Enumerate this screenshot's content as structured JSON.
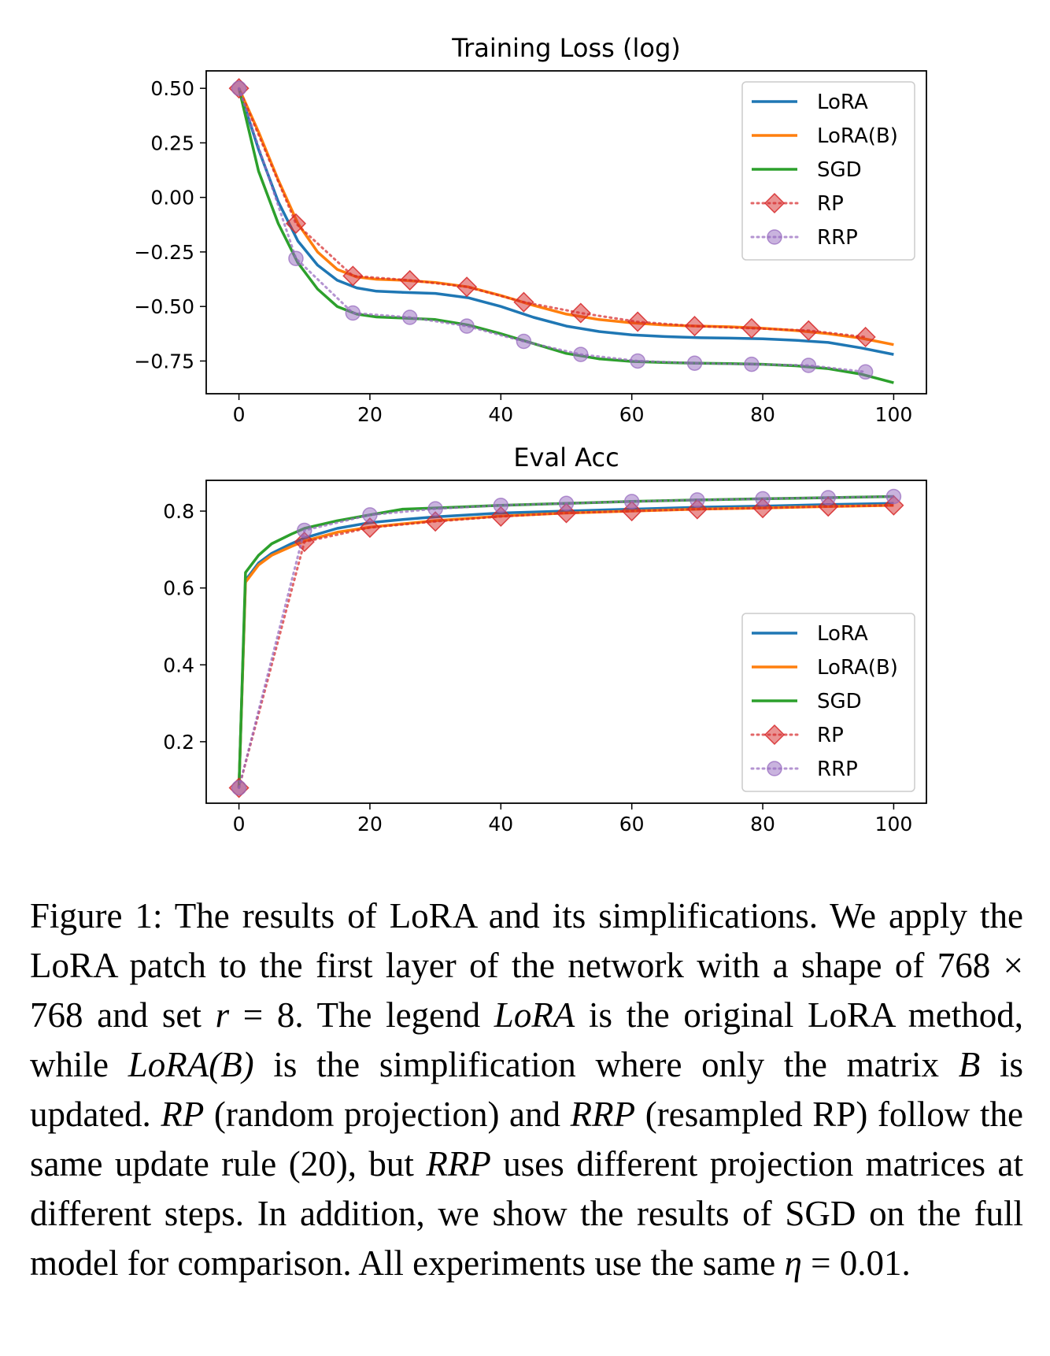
{
  "chart_data": [
    {
      "type": "line",
      "title": "Training Loss (log)",
      "xlabel": "",
      "ylabel": "",
      "xlim": [
        -5,
        105
      ],
      "ylim": [
        -0.9,
        0.58
      ],
      "x_ticks": [
        0,
        20,
        40,
        60,
        80,
        100
      ],
      "x_tick_labels": [
        "0",
        "20",
        "40",
        "60",
        "80",
        "100"
      ],
      "y_ticks": [
        0.5,
        0.25,
        0.0,
        -0.25,
        -0.5,
        -0.75
      ],
      "y_tick_labels": [
        "0.50",
        "0.25",
        "0.00",
        "−0.25",
        "−0.50",
        "−0.75"
      ],
      "legend_position": "upper right",
      "series": [
        {
          "name": "LoRA",
          "color": "#1f77b4",
          "style": "solid",
          "x": [
            0,
            3,
            6,
            9,
            12,
            15,
            18,
            21,
            25,
            30,
            35,
            40,
            45,
            50,
            55,
            60,
            65,
            70,
            75,
            80,
            85,
            90,
            95,
            100
          ],
          "y": [
            0.5,
            0.22,
            -0.02,
            -0.2,
            -0.31,
            -0.38,
            -0.415,
            -0.43,
            -0.435,
            -0.44,
            -0.46,
            -0.5,
            -0.55,
            -0.59,
            -0.615,
            -0.63,
            -0.638,
            -0.643,
            -0.645,
            -0.648,
            -0.655,
            -0.665,
            -0.69,
            -0.72
          ]
        },
        {
          "name": "LoRA(B)",
          "color": "#ff7f0e",
          "style": "solid",
          "x": [
            0,
            3,
            6,
            9,
            12,
            15,
            18,
            21,
            25,
            30,
            35,
            40,
            45,
            50,
            55,
            60,
            65,
            70,
            75,
            80,
            85,
            90,
            95,
            100
          ],
          "y": [
            0.5,
            0.3,
            0.08,
            -0.12,
            -0.25,
            -0.33,
            -0.365,
            -0.375,
            -0.38,
            -0.39,
            -0.41,
            -0.45,
            -0.495,
            -0.535,
            -0.56,
            -0.575,
            -0.585,
            -0.59,
            -0.593,
            -0.6,
            -0.61,
            -0.625,
            -0.645,
            -0.675
          ]
        },
        {
          "name": "SGD",
          "color": "#2ca02c",
          "style": "solid",
          "x": [
            0,
            3,
            6,
            9,
            12,
            15,
            18,
            21,
            25,
            30,
            35,
            40,
            45,
            50,
            55,
            60,
            65,
            70,
            75,
            80,
            85,
            90,
            95,
            100
          ],
          "y": [
            0.5,
            0.12,
            -0.12,
            -0.3,
            -0.42,
            -0.5,
            -0.535,
            -0.548,
            -0.553,
            -0.56,
            -0.585,
            -0.625,
            -0.67,
            -0.715,
            -0.74,
            -0.752,
            -0.757,
            -0.76,
            -0.762,
            -0.765,
            -0.772,
            -0.785,
            -0.81,
            -0.85
          ]
        },
        {
          "name": "RP",
          "color": "#d62728",
          "style": "dotted",
          "marker": "diamond",
          "x": [
            0,
            8.7,
            17.4,
            26.1,
            34.8,
            43.5,
            52.2,
            60.9,
            69.6,
            78.3,
            87,
            95.7
          ],
          "y": [
            0.5,
            -0.12,
            -0.36,
            -0.38,
            -0.41,
            -0.48,
            -0.53,
            -0.57,
            -0.59,
            -0.6,
            -0.61,
            -0.64
          ]
        },
        {
          "name": "RRP",
          "color": "#9467bd",
          "style": "dotted",
          "marker": "circle",
          "x": [
            0,
            8.7,
            17.4,
            26.1,
            34.8,
            43.5,
            52.2,
            60.9,
            69.6,
            78.3,
            87,
            95.7
          ],
          "y": [
            0.5,
            -0.28,
            -0.53,
            -0.55,
            -0.59,
            -0.66,
            -0.72,
            -0.75,
            -0.76,
            -0.765,
            -0.77,
            -0.8
          ]
        }
      ]
    },
    {
      "type": "line",
      "title": "Eval Acc",
      "xlabel": "",
      "ylabel": "",
      "xlim": [
        -5,
        105
      ],
      "ylim": [
        0.04,
        0.88
      ],
      "x_ticks": [
        0,
        20,
        40,
        60,
        80,
        100
      ],
      "x_tick_labels": [
        "0",
        "20",
        "40",
        "60",
        "80",
        "100"
      ],
      "y_ticks": [
        0.8,
        0.6,
        0.4,
        0.2
      ],
      "y_tick_labels": [
        "0.8",
        "0.6",
        "0.4",
        "0.2"
      ],
      "legend_position": "center right",
      "series": [
        {
          "name": "LoRA",
          "color": "#1f77b4",
          "style": "solid",
          "x": [
            0,
            1,
            3,
            5,
            8,
            10,
            15,
            20,
            25,
            30,
            40,
            50,
            60,
            70,
            80,
            90,
            100
          ],
          "y": [
            0.08,
            0.62,
            0.665,
            0.69,
            0.715,
            0.73,
            0.755,
            0.77,
            0.778,
            0.785,
            0.795,
            0.8,
            0.805,
            0.81,
            0.813,
            0.817,
            0.82
          ]
        },
        {
          "name": "LoRA(B)",
          "color": "#ff7f0e",
          "style": "solid",
          "x": [
            0,
            1,
            3,
            5,
            8,
            10,
            15,
            20,
            25,
            30,
            40,
            50,
            60,
            70,
            80,
            90,
            100
          ],
          "y": [
            0.08,
            0.615,
            0.66,
            0.685,
            0.708,
            0.722,
            0.745,
            0.758,
            0.767,
            0.775,
            0.787,
            0.795,
            0.8,
            0.805,
            0.808,
            0.812,
            0.815
          ]
        },
        {
          "name": "SGD",
          "color": "#2ca02c",
          "style": "solid",
          "x": [
            0,
            1,
            3,
            5,
            8,
            10,
            15,
            20,
            25,
            30,
            40,
            50,
            60,
            70,
            80,
            90,
            100
          ],
          "y": [
            0.08,
            0.64,
            0.685,
            0.715,
            0.74,
            0.755,
            0.775,
            0.79,
            0.805,
            0.808,
            0.815,
            0.82,
            0.825,
            0.829,
            0.832,
            0.835,
            0.838
          ]
        },
        {
          "name": "RP",
          "color": "#d62728",
          "style": "dotted",
          "marker": "diamond",
          "x": [
            0,
            10,
            20,
            30,
            40,
            50,
            60,
            70,
            80,
            90,
            100
          ],
          "y": [
            0.08,
            0.72,
            0.757,
            0.773,
            0.786,
            0.795,
            0.8,
            0.805,
            0.808,
            0.812,
            0.815
          ]
        },
        {
          "name": "RRP",
          "color": "#9467bd",
          "style": "dotted",
          "marker": "circle",
          "x": [
            0,
            10,
            20,
            30,
            40,
            50,
            60,
            70,
            80,
            90,
            100
          ],
          "y": [
            0.08,
            0.75,
            0.79,
            0.806,
            0.815,
            0.82,
            0.825,
            0.829,
            0.832,
            0.835,
            0.838
          ]
        }
      ]
    }
  ],
  "caption": {
    "label": "Figure 1:",
    "segments": [
      {
        "text": " The results of LoRA and its simplifications. We apply the LoRA patch to the first layer of the network with a shape of ",
        "style": "normal"
      },
      {
        "text": "768 × 768",
        "style": "normal"
      },
      {
        "text": " and set ",
        "style": "normal"
      },
      {
        "text": "r",
        "style": "math"
      },
      {
        "text": " = 8. The legend ",
        "style": "normal"
      },
      {
        "text": "LoRA",
        "style": "italic"
      },
      {
        "text": " is the original LoRA method, while ",
        "style": "normal"
      },
      {
        "text": "LoRA(B)",
        "style": "italic"
      },
      {
        "text": " is the simplification where only the matrix ",
        "style": "normal"
      },
      {
        "text": "B",
        "style": "math"
      },
      {
        "text": " is updated. ",
        "style": "normal"
      },
      {
        "text": "RP",
        "style": "italic"
      },
      {
        "text": " (random projection) and ",
        "style": "normal"
      },
      {
        "text": "RRP",
        "style": "italic"
      },
      {
        "text": " (resampled RP) follow the same update rule (20), but ",
        "style": "normal"
      },
      {
        "text": "RRP",
        "style": "italic"
      },
      {
        "text": " uses different projection matrices at different steps. In addition, we show the results of SGD on the full model for comparison. All experiments use the same ",
        "style": "normal"
      },
      {
        "text": "η",
        "style": "math"
      },
      {
        "text": " = 0.01.",
        "style": "normal"
      }
    ]
  }
}
